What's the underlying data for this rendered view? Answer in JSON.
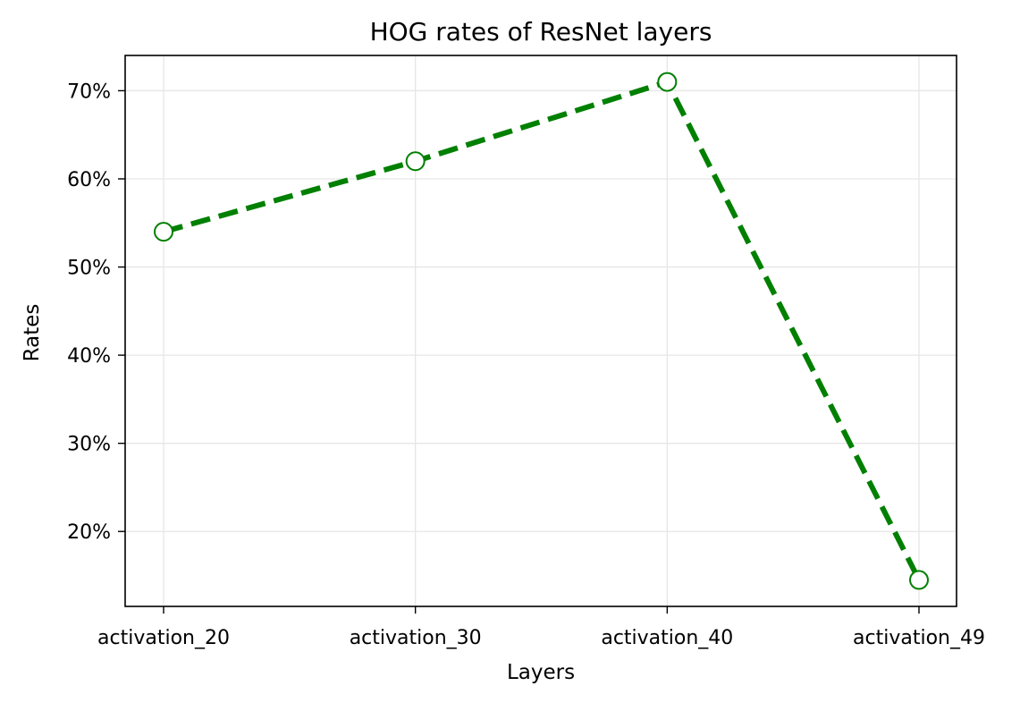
{
  "chart_data": {
    "type": "line",
    "title": "HOG rates of ResNet layers",
    "xlabel": "Layers",
    "ylabel": "Rates",
    "categories": [
      "activation_20",
      "activation_30",
      "activation_40",
      "activation_49"
    ],
    "series": [
      {
        "values": [
          54.0,
          62.0,
          71.0,
          14.5
        ]
      }
    ],
    "ylim": [
      11.5,
      74.0
    ],
    "yticks": [
      20,
      30,
      40,
      50,
      60,
      70
    ],
    "ytick_labels": [
      "20%",
      "30%",
      "40%",
      "50%",
      "60%",
      "70%"
    ],
    "grid": true,
    "line_style": "dashed",
    "marker": "open-circle",
    "colors": {
      "line": "#008000",
      "grid": "#e6e6e6"
    }
  }
}
